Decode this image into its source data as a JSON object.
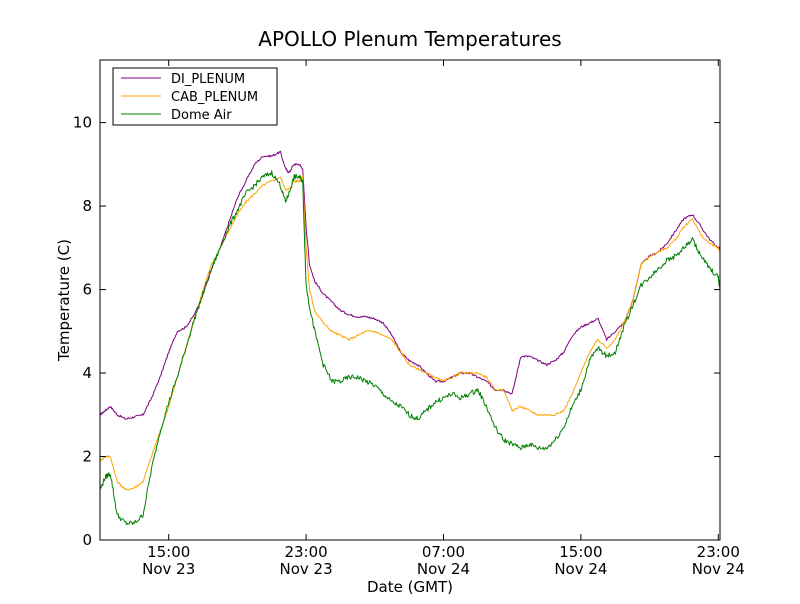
{
  "chart_data": {
    "type": "line",
    "title": "APOLLO Plenum Temperatures",
    "xlabel": "Date (GMT)",
    "ylabel": "Temperature (C)",
    "xlim": [
      11.0,
      47.1
    ],
    "ylim": [
      0,
      11.5
    ],
    "x_unit": "hours since Nov 23 00:00 GMT",
    "x_ticks": [
      {
        "value": 15,
        "line1": "15:00",
        "line2": "Nov 23"
      },
      {
        "value": 23,
        "line1": "23:00",
        "line2": "Nov 23"
      },
      {
        "value": 31,
        "line1": "07:00",
        "line2": "Nov 24"
      },
      {
        "value": 39,
        "line1": "15:00",
        "line2": "Nov 24"
      },
      {
        "value": 47,
        "line1": "23:00",
        "line2": "Nov 24"
      }
    ],
    "y_ticks": [
      0,
      2,
      4,
      6,
      8,
      10
    ],
    "y_tick_labels": [
      "0",
      "2",
      "4",
      "6",
      "8",
      "10"
    ],
    "legend_position": "top-left",
    "grid": false,
    "series": [
      {
        "name": "DI_PLENUM",
        "color": "#800080",
        "x": [
          11.0,
          11.3,
          11.6,
          12.0,
          12.5,
          13.0,
          13.5,
          14.0,
          14.5,
          15.0,
          15.5,
          16.0,
          16.5,
          17.0,
          17.5,
          18.0,
          18.5,
          19.0,
          19.5,
          20.0,
          20.5,
          21.0,
          21.5,
          21.8,
          22.0,
          22.3,
          22.6,
          22.8,
          23.0,
          23.2,
          23.5,
          24.0,
          24.5,
          25.0,
          25.5,
          26.0,
          26.5,
          27.0,
          27.5,
          28.0,
          28.5,
          29.0,
          29.5,
          30.0,
          30.5,
          31.0,
          31.5,
          32.0,
          32.5,
          33.0,
          33.5,
          34.0,
          34.5,
          35.0,
          35.5,
          36.0,
          36.5,
          37.0,
          37.5,
          38.0,
          38.5,
          39.0,
          39.5,
          40.0,
          40.5,
          41.0,
          41.5,
          42.0,
          42.5,
          43.0,
          43.5,
          44.0,
          44.5,
          45.0,
          45.5,
          46.0,
          46.5,
          47.0,
          47.1
        ],
        "y": [
          3.0,
          3.1,
          3.2,
          3.0,
          2.9,
          2.95,
          3.0,
          3.4,
          3.9,
          4.5,
          5.0,
          5.1,
          5.4,
          5.9,
          6.5,
          7.0,
          7.6,
          8.2,
          8.6,
          9.0,
          9.2,
          9.2,
          9.3,
          8.9,
          8.8,
          9.0,
          9.0,
          8.9,
          7.5,
          6.6,
          6.2,
          5.9,
          5.7,
          5.5,
          5.4,
          5.35,
          5.35,
          5.3,
          5.2,
          4.9,
          4.5,
          4.3,
          4.2,
          4.0,
          3.8,
          3.8,
          3.9,
          4.0,
          4.0,
          3.9,
          3.8,
          3.6,
          3.6,
          3.5,
          4.4,
          4.4,
          4.3,
          4.2,
          4.3,
          4.5,
          4.9,
          5.1,
          5.2,
          5.3,
          4.8,
          5.0,
          5.2,
          5.7,
          6.6,
          6.8,
          6.9,
          7.1,
          7.4,
          7.7,
          7.8,
          7.5,
          7.2,
          7.0,
          7.0
        ]
      },
      {
        "name": "CAB_PLENUM",
        "color": "#ffa500",
        "x": [
          11.0,
          11.3,
          11.6,
          12.0,
          12.5,
          13.0,
          13.5,
          14.0,
          14.5,
          15.0,
          15.5,
          16.0,
          16.5,
          17.0,
          17.5,
          18.0,
          18.5,
          19.0,
          19.5,
          20.0,
          20.5,
          21.0,
          21.5,
          21.8,
          22.0,
          22.3,
          22.6,
          22.8,
          23.0,
          23.2,
          23.5,
          24.0,
          24.5,
          25.0,
          25.5,
          26.0,
          26.5,
          27.0,
          27.5,
          28.0,
          28.5,
          29.0,
          29.5,
          30.0,
          30.5,
          31.0,
          31.5,
          32.0,
          32.5,
          33.0,
          33.5,
          34.0,
          34.5,
          35.0,
          35.5,
          36.0,
          36.5,
          37.0,
          37.5,
          38.0,
          38.5,
          39.0,
          39.5,
          40.0,
          40.5,
          41.0,
          41.5,
          42.0,
          42.5,
          43.0,
          43.5,
          44.0,
          44.5,
          45.0,
          45.5,
          46.0,
          46.5,
          47.0,
          47.1
        ],
        "y": [
          1.9,
          2.0,
          2.0,
          1.4,
          1.2,
          1.25,
          1.4,
          2.0,
          2.6,
          3.2,
          3.9,
          4.6,
          5.3,
          6.0,
          6.6,
          7.0,
          7.4,
          7.8,
          8.1,
          8.3,
          8.5,
          8.6,
          8.7,
          8.4,
          8.4,
          8.6,
          8.6,
          8.7,
          7.0,
          6.0,
          5.5,
          5.2,
          5.0,
          4.9,
          4.8,
          4.9,
          5.0,
          5.0,
          4.9,
          4.8,
          4.5,
          4.2,
          4.1,
          4.0,
          3.9,
          3.8,
          3.9,
          4.0,
          4.0,
          4.0,
          3.9,
          3.6,
          3.6,
          3.1,
          3.2,
          3.1,
          3.0,
          3.0,
          3.0,
          3.1,
          3.5,
          4.0,
          4.5,
          4.8,
          4.6,
          4.8,
          5.2,
          5.7,
          6.6,
          6.8,
          6.9,
          7.0,
          7.2,
          7.5,
          7.7,
          7.3,
          7.1,
          7.0,
          6.9
        ]
      },
      {
        "name": "Dome Air",
        "color": "#008000",
        "x": [
          11.0,
          11.3,
          11.6,
          12.0,
          12.5,
          13.0,
          13.5,
          14.0,
          14.5,
          15.0,
          15.5,
          16.0,
          16.5,
          17.0,
          17.5,
          18.0,
          18.5,
          19.0,
          19.5,
          20.0,
          20.5,
          21.0,
          21.5,
          21.8,
          22.0,
          22.3,
          22.6,
          22.8,
          23.0,
          23.2,
          23.5,
          24.0,
          24.5,
          25.0,
          25.5,
          26.0,
          26.5,
          27.0,
          27.5,
          28.0,
          28.5,
          29.0,
          29.5,
          30.0,
          30.5,
          31.0,
          31.5,
          32.0,
          32.5,
          33.0,
          33.5,
          34.0,
          34.5,
          35.0,
          35.5,
          36.0,
          36.5,
          37.0,
          37.5,
          38.0,
          38.5,
          39.0,
          39.5,
          40.0,
          40.5,
          41.0,
          41.5,
          42.0,
          42.5,
          43.0,
          43.5,
          44.0,
          44.5,
          45.0,
          45.5,
          46.0,
          46.5,
          47.0,
          47.1
        ],
        "y": [
          1.2,
          1.5,
          1.6,
          0.6,
          0.4,
          0.4,
          0.6,
          1.7,
          2.6,
          3.3,
          3.9,
          4.6,
          5.3,
          5.9,
          6.5,
          7.0,
          7.5,
          7.9,
          8.3,
          8.5,
          8.7,
          8.8,
          8.5,
          8.1,
          8.3,
          8.7,
          8.7,
          8.6,
          6.1,
          5.6,
          5.0,
          4.2,
          3.8,
          3.8,
          3.9,
          3.9,
          3.8,
          3.7,
          3.5,
          3.3,
          3.2,
          3.0,
          2.9,
          3.1,
          3.3,
          3.4,
          3.5,
          3.4,
          3.5,
          3.6,
          3.2,
          2.7,
          2.4,
          2.3,
          2.2,
          2.3,
          2.2,
          2.2,
          2.4,
          2.7,
          3.2,
          3.6,
          4.3,
          4.6,
          4.4,
          4.5,
          5.1,
          5.6,
          6.1,
          6.3,
          6.5,
          6.7,
          6.8,
          7.0,
          7.2,
          6.8,
          6.5,
          6.3,
          6.0
        ]
      }
    ]
  }
}
